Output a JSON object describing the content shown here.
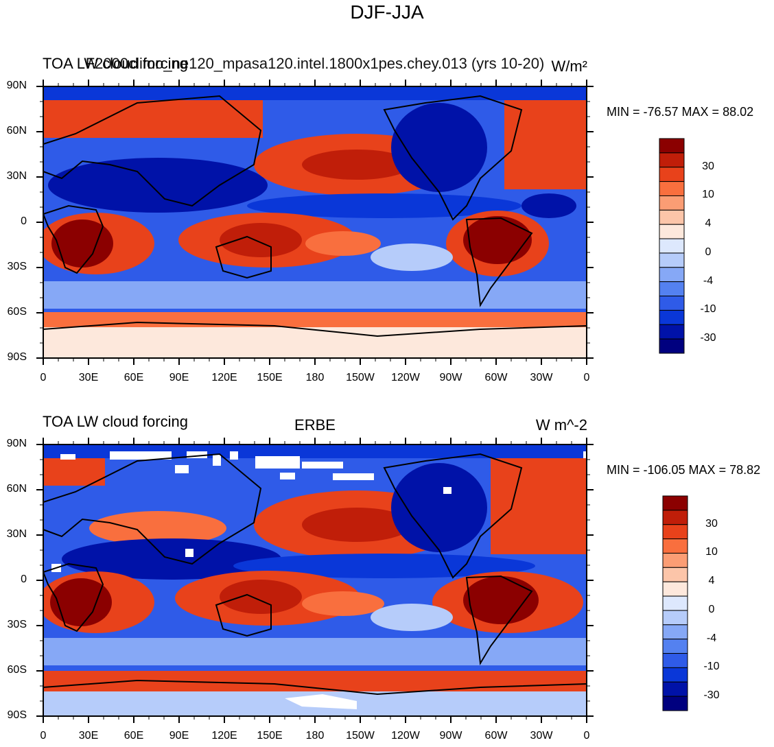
{
  "title": "DJF-JJA",
  "colors": {
    "scale": [
      "#00007f",
      "#0012a8",
      "#0a37d8",
      "#2f5be8",
      "#5481f0",
      "#86a8f6",
      "#b6ccfa",
      "#dde8fd",
      "#fde8dc",
      "#fcc5a9",
      "#fb9d74",
      "#f96f3e",
      "#e8421b",
      "#c01e09",
      "#8b0000"
    ],
    "frame": "#000000"
  },
  "axes": {
    "x_ticks": [
      "0",
      "30E",
      "60E",
      "90E",
      "120E",
      "150E",
      "180",
      "150W",
      "120W",
      "90W",
      "60W",
      "30W",
      "0"
    ],
    "y_ticks": [
      "90N",
      "60N",
      "30N",
      "0",
      "30S",
      "60S",
      "90S"
    ]
  },
  "panels": [
    {
      "left_title": "TOA LW cloud forcing",
      "center_title": "F2000climo_ne120_mpasa120.intel.1800x1pes.chey.013 (yrs 10-20)",
      "right_title": "W/m²",
      "minmax": "MIN = -76.57 MAX =  88.02",
      "colorbar_labels": [
        "30",
        "10",
        "4",
        "0",
        "-4",
        "-10",
        "-30"
      ]
    },
    {
      "left_title": "TOA LW cloud forcing",
      "center_title": "ERBE",
      "right_title": "W m^-2",
      "minmax": "MIN = -106.05 MAX =  78.82",
      "colorbar_labels": [
        "30",
        "10",
        "4",
        "0",
        "-4",
        "-10",
        "-30"
      ]
    }
  ]
}
